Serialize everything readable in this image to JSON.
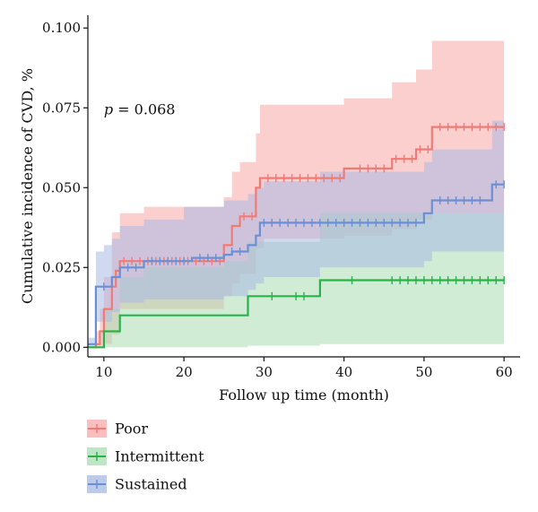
{
  "chart_data": {
    "type": "line",
    "subtype": "step-cumulative-incidence",
    "xlabel": "Follow up time (month)",
    "ylabel": "Cumulative incidence of CVD, %",
    "xlim": [
      8,
      62
    ],
    "ylim": [
      -0.003,
      0.104
    ],
    "x_ticks": [
      10,
      20,
      30,
      40,
      50,
      60
    ],
    "x_tick_labels": [
      "10",
      "20",
      "30",
      "40",
      "50",
      "60"
    ],
    "y_ticks": [
      0,
      0.025,
      0.05,
      0.075,
      0.1
    ],
    "y_tick_labels": [
      "0.000",
      "0.025",
      "0.050",
      "0.075",
      "0.100"
    ],
    "annotation": {
      "italic": "p",
      "text": " = 0.068",
      "x": 10,
      "y": 0.073
    },
    "grid": false,
    "legend_position": "bottom-left",
    "series": [
      {
        "name": "Poor",
        "color": "#F07B76",
        "ci_color": "#F9A8A8",
        "steps": [
          [
            8.5,
            0
          ],
          [
            9,
            0.001
          ],
          [
            9.5,
            0.005
          ],
          [
            10,
            0.012
          ],
          [
            11,
            0.019
          ],
          [
            11.5,
            0.024
          ],
          [
            12,
            0.027
          ],
          [
            25,
            0.032
          ],
          [
            26,
            0.038
          ],
          [
            27,
            0.041
          ],
          [
            29,
            0.05
          ],
          [
            29.5,
            0.053
          ],
          [
            40,
            0.056
          ],
          [
            46,
            0.059
          ],
          [
            49,
            0.062
          ],
          [
            51,
            0.069
          ],
          [
            60,
            0.069
          ]
        ],
        "upper": [
          [
            8.5,
            0
          ],
          [
            9,
            0.005
          ],
          [
            9.5,
            0.012
          ],
          [
            10,
            0.022
          ],
          [
            11,
            0.036
          ],
          [
            12,
            0.042
          ],
          [
            15,
            0.044
          ],
          [
            25,
            0.047
          ],
          [
            26,
            0.055
          ],
          [
            27,
            0.058
          ],
          [
            29,
            0.067
          ],
          [
            29.5,
            0.076
          ],
          [
            40,
            0.078
          ],
          [
            46,
            0.083
          ],
          [
            49,
            0.087
          ],
          [
            51,
            0.096
          ],
          [
            60,
            0.096
          ]
        ],
        "lower": [
          [
            8.5,
            0
          ],
          [
            9,
            0
          ],
          [
            10,
            0.001
          ],
          [
            11,
            0.004
          ],
          [
            12,
            0.012
          ],
          [
            25,
            0.016
          ],
          [
            26,
            0.02
          ],
          [
            27,
            0.023
          ],
          [
            29,
            0.031
          ],
          [
            30,
            0.034
          ],
          [
            40,
            0.035
          ],
          [
            46,
            0.037
          ],
          [
            49,
            0.04
          ],
          [
            51,
            0.042
          ],
          [
            60,
            0.042
          ]
        ],
        "censor_x": [
          12.5,
          13.5,
          14.5,
          15.5,
          16.5,
          17.5,
          18.5,
          19.5,
          20.5,
          21.5,
          22.5,
          23.5,
          24.5,
          27.5,
          28.5,
          30.5,
          31.5,
          32.5,
          33.5,
          34.5,
          35.5,
          36.5,
          37.5,
          38.5,
          39.5,
          42,
          43,
          44,
          45,
          46.5,
          47.5,
          48.5,
          49.5,
          50.5,
          52,
          53,
          54,
          55,
          56,
          57,
          58,
          59,
          60
        ]
      },
      {
        "name": "Intermittent",
        "color": "#27B34A",
        "ci_color": "#A9DDB0",
        "steps": [
          [
            8,
            0
          ],
          [
            10,
            0.005
          ],
          [
            12,
            0.01
          ],
          [
            28,
            0.016
          ],
          [
            37,
            0.021
          ],
          [
            60,
            0.021
          ]
        ],
        "upper": [
          [
            8,
            0
          ],
          [
            10,
            0.012
          ],
          [
            12,
            0.022
          ],
          [
            15,
            0.025
          ],
          [
            25,
            0.027
          ],
          [
            28,
            0.033
          ],
          [
            37,
            0.042
          ],
          [
            60,
            0.042
          ]
        ],
        "lower": [
          [
            8,
            0
          ],
          [
            28,
            0.0005
          ],
          [
            37,
            0.001
          ],
          [
            60,
            0.001
          ]
        ],
        "censor_x": [
          31,
          34,
          35,
          41,
          46,
          47,
          48,
          49,
          50,
          51,
          52,
          53,
          54,
          55,
          56,
          57,
          58,
          59,
          60
        ]
      },
      {
        "name": "Sustained",
        "color": "#6B8FD4",
        "ci_color": "#A7B9E4",
        "steps": [
          [
            8,
            0.001
          ],
          [
            9,
            0.019
          ],
          [
            11,
            0.022
          ],
          [
            12,
            0.025
          ],
          [
            15,
            0.027
          ],
          [
            21,
            0.028
          ],
          [
            25,
            0.029
          ],
          [
            26,
            0.03
          ],
          [
            28,
            0.032
          ],
          [
            29,
            0.035
          ],
          [
            29.5,
            0.039
          ],
          [
            50,
            0.042
          ],
          [
            51,
            0.046
          ],
          [
            58.5,
            0.051
          ],
          [
            60,
            0.051
          ]
        ],
        "upper": [
          [
            8,
            0.003
          ],
          [
            9,
            0.03
          ],
          [
            10,
            0.032
          ],
          [
            11,
            0.034
          ],
          [
            12,
            0.038
          ],
          [
            15,
            0.04
          ],
          [
            20,
            0.044
          ],
          [
            25,
            0.046
          ],
          [
            28,
            0.048
          ],
          [
            29,
            0.05
          ],
          [
            30,
            0.052
          ],
          [
            37,
            0.055
          ],
          [
            50,
            0.058
          ],
          [
            51,
            0.062
          ],
          [
            58.5,
            0.071
          ],
          [
            60,
            0.071
          ]
        ],
        "lower": [
          [
            8,
            0
          ],
          [
            9,
            0.008
          ],
          [
            11,
            0.011
          ],
          [
            12,
            0.014
          ],
          [
            15,
            0.015
          ],
          [
            25,
            0.016
          ],
          [
            28,
            0.018
          ],
          [
            29,
            0.02
          ],
          [
            30,
            0.022
          ],
          [
            37,
            0.025
          ],
          [
            50,
            0.027
          ],
          [
            51,
            0.03
          ],
          [
            60,
            0.031
          ]
        ],
        "censor_x": [
          10,
          13,
          14,
          16,
          17,
          18,
          19,
          20,
          22,
          23,
          24,
          26,
          27,
          30,
          31,
          32,
          33,
          34,
          35,
          36,
          37,
          38,
          39,
          40,
          41,
          42,
          43,
          44,
          45,
          46,
          47,
          48,
          49,
          52,
          53,
          54,
          55,
          56,
          57,
          59,
          60
        ]
      }
    ]
  }
}
